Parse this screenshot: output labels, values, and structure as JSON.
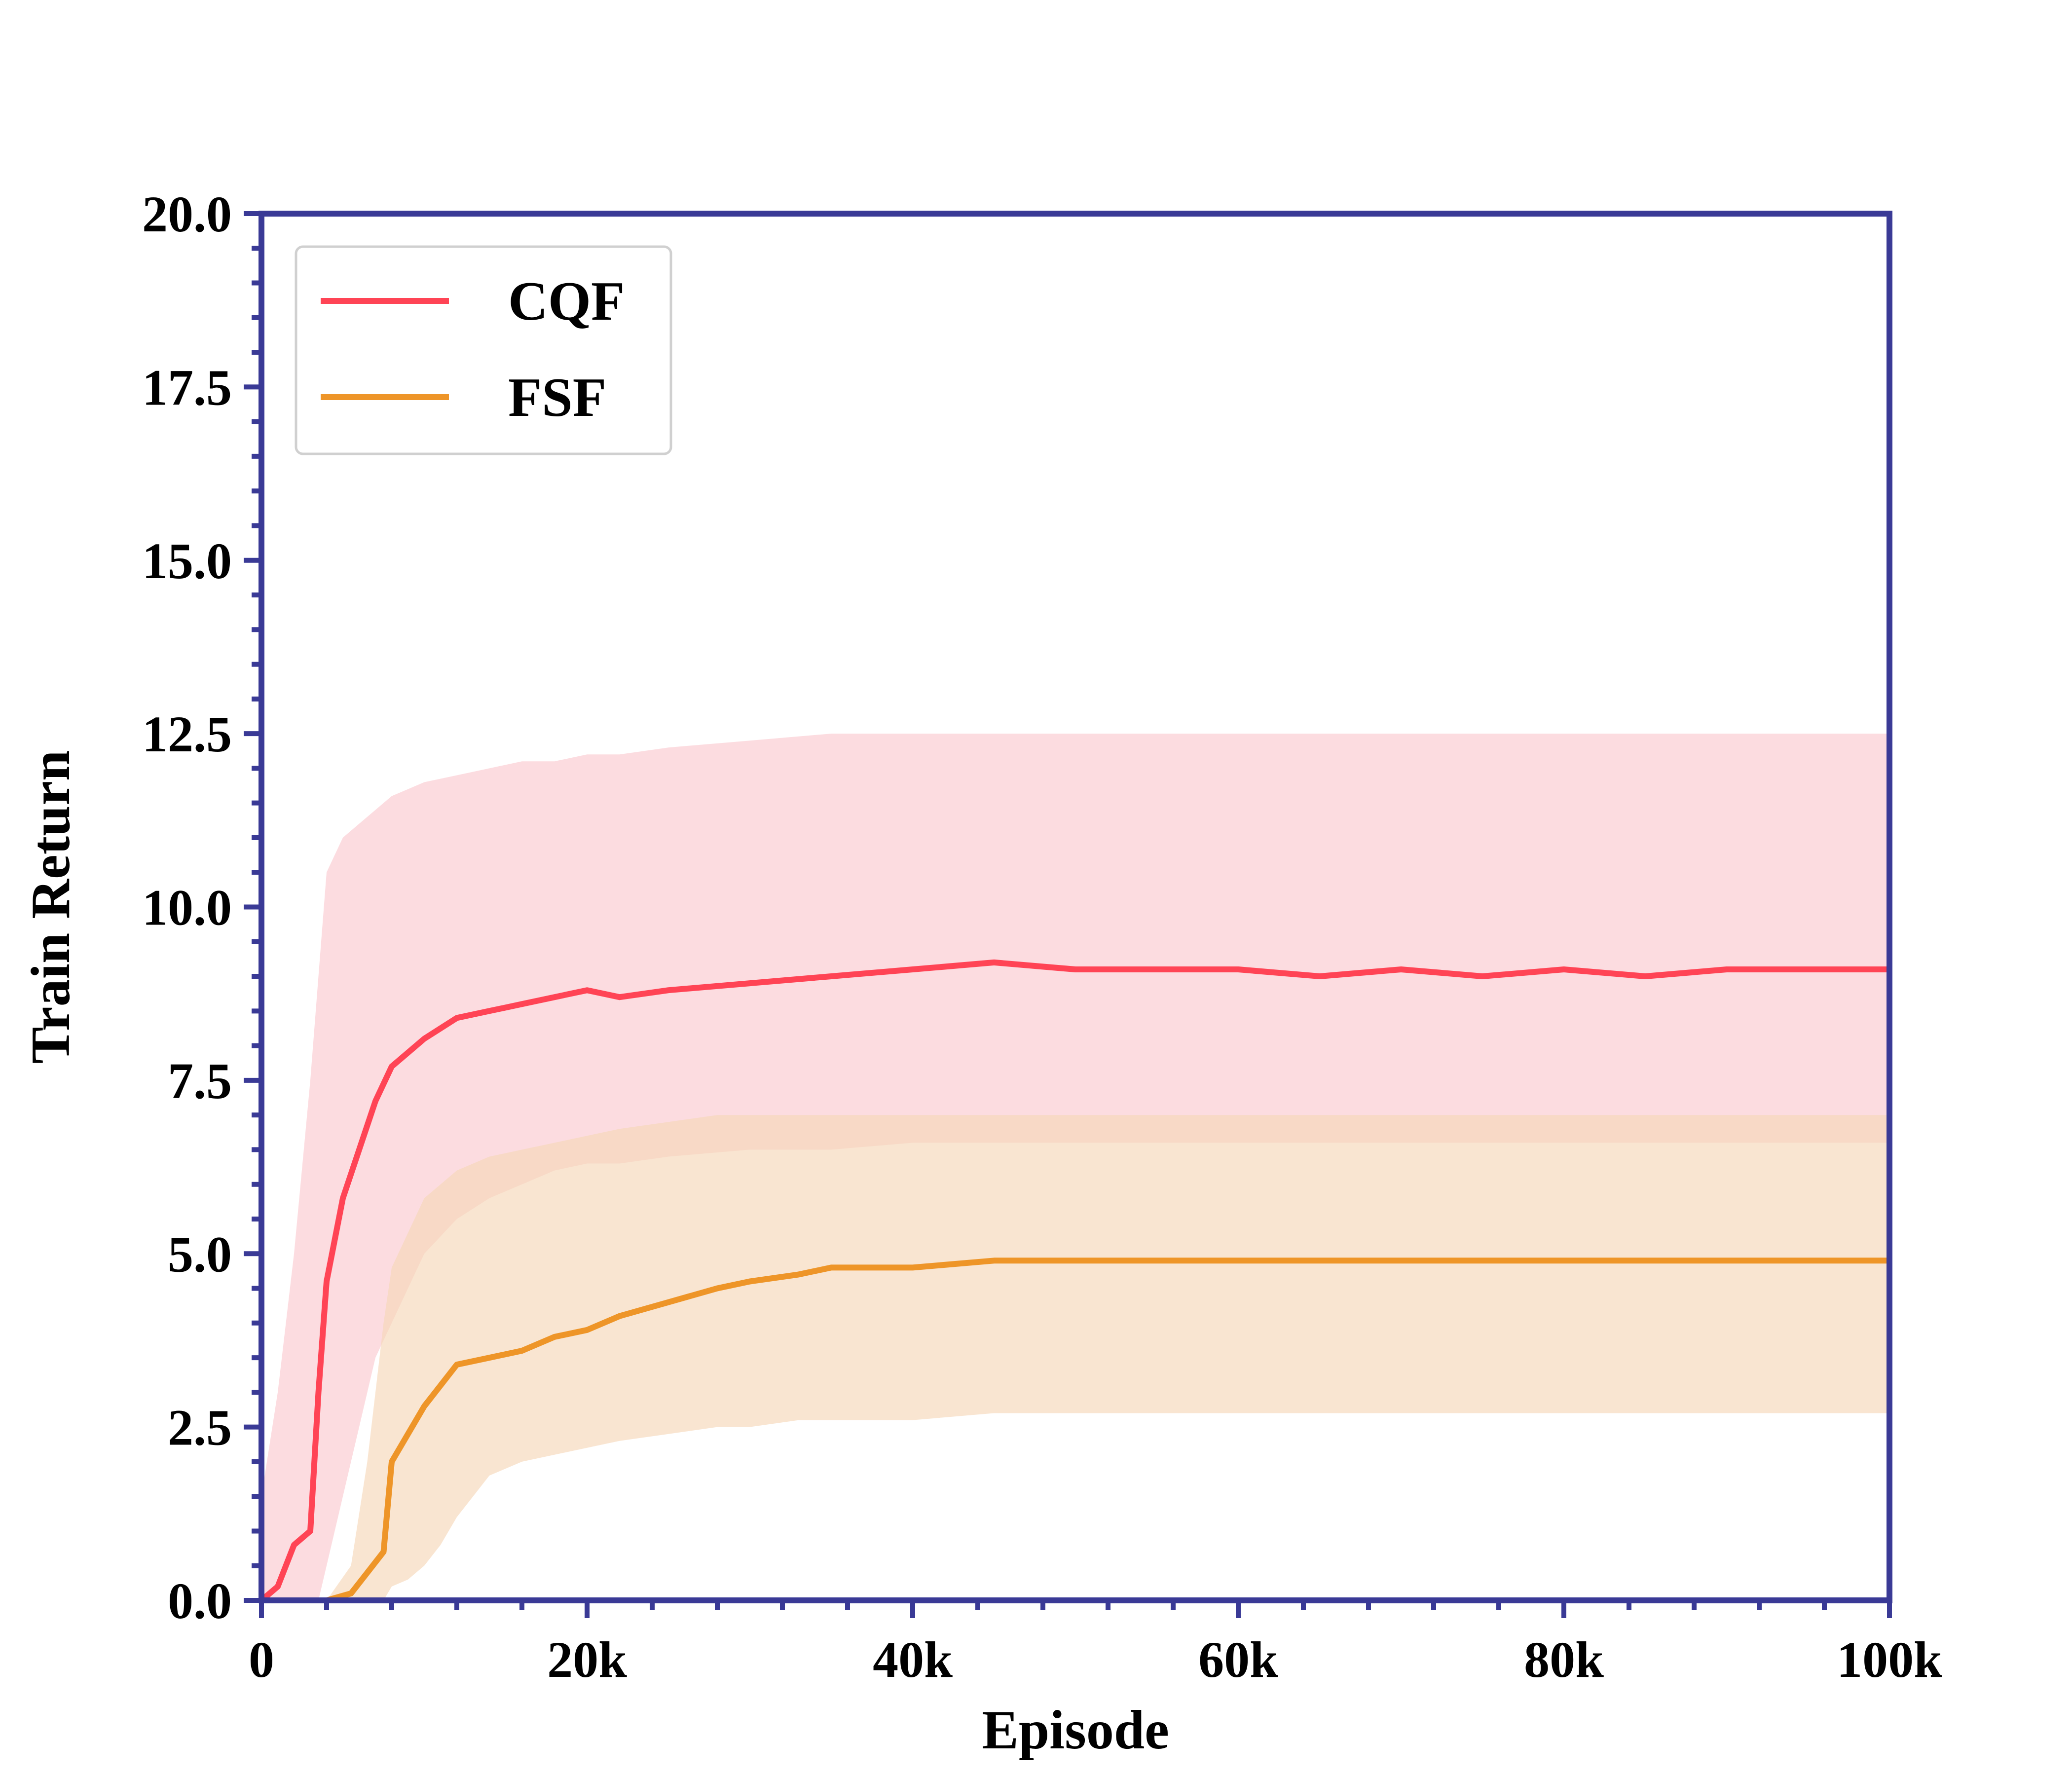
{
  "chart_data": {
    "type": "line",
    "title": "",
    "xlabel": "Episode",
    "ylabel": "Train Return",
    "xlim": [
      0,
      100000
    ],
    "ylim": [
      0,
      20
    ],
    "x_ticks": [
      0,
      20000,
      40000,
      60000,
      80000,
      100000
    ],
    "x_tick_labels": [
      "0",
      "20k",
      "40k",
      "60k",
      "80k",
      "100k"
    ],
    "y_ticks": [
      0,
      2.5,
      5,
      7.5,
      10,
      12.5,
      15,
      17.5,
      20
    ],
    "y_tick_labels": [
      "0.0",
      "2.5",
      "5.0",
      "7.5",
      "10.0",
      "12.5",
      "15.0",
      "17.5",
      "20.0"
    ],
    "grid": false,
    "legend_position": "top-left",
    "axis_color": "#3a3a96",
    "series": [
      {
        "name": "CQF",
        "color": "#ff4455",
        "band_color": "#fbc9d0",
        "x": [
          0,
          1000,
          2000,
          3000,
          3500,
          4000,
          5000,
          6000,
          7000,
          8000,
          9000,
          10000,
          12000,
          14000,
          16000,
          18000,
          20000,
          22000,
          25000,
          30000,
          35000,
          40000,
          45000,
          50000,
          55000,
          60000,
          65000,
          70000,
          75000,
          80000,
          85000,
          90000,
          95000,
          100000
        ],
        "mean": [
          0.0,
          0.2,
          0.8,
          1.0,
          3.0,
          4.6,
          5.8,
          6.5,
          7.2,
          7.7,
          7.9,
          8.1,
          8.4,
          8.5,
          8.6,
          8.7,
          8.8,
          8.7,
          8.8,
          8.9,
          9.0,
          9.1,
          9.2,
          9.1,
          9.1,
          9.1,
          9.0,
          9.1,
          9.0,
          9.1,
          9.0,
          9.1,
          9.1,
          9.1
        ],
        "lower": [
          0.0,
          0.0,
          0.0,
          0.0,
          0.0,
          0.5,
          1.5,
          2.5,
          3.5,
          4.0,
          4.5,
          5.0,
          5.5,
          5.8,
          6.0,
          6.2,
          6.3,
          6.3,
          6.4,
          6.5,
          6.5,
          6.6,
          6.6,
          6.6,
          6.6,
          6.6,
          6.6,
          6.6,
          6.6,
          6.6,
          6.6,
          6.6,
          6.6,
          6.6
        ],
        "upper": [
          1.5,
          3.0,
          5.0,
          7.5,
          9.0,
          10.5,
          11.0,
          11.2,
          11.4,
          11.6,
          11.7,
          11.8,
          11.9,
          12.0,
          12.1,
          12.1,
          12.2,
          12.2,
          12.3,
          12.4,
          12.5,
          12.5,
          12.5,
          12.5,
          12.5,
          12.5,
          12.5,
          12.5,
          12.5,
          12.5,
          12.5,
          12.5,
          12.5,
          12.5
        ]
      },
      {
        "name": "FSF",
        "color": "#ee9528",
        "band_color": "#f6d7b8",
        "x": [
          0,
          2000,
          4000,
          5500,
          6500,
          7500,
          8000,
          9000,
          10000,
          11000,
          12000,
          14000,
          16000,
          18000,
          20000,
          22000,
          25000,
          28000,
          30000,
          33000,
          35000,
          38000,
          40000,
          45000,
          50000,
          55000,
          60000,
          65000,
          70000,
          75000,
          80000,
          85000,
          90000,
          95000,
          100000
        ],
        "mean": [
          0.0,
          0.0,
          0.0,
          0.1,
          0.4,
          0.7,
          2.0,
          2.4,
          2.8,
          3.1,
          3.4,
          3.5,
          3.6,
          3.8,
          3.9,
          4.1,
          4.3,
          4.5,
          4.6,
          4.7,
          4.8,
          4.8,
          4.8,
          4.9,
          4.9,
          4.9,
          4.9,
          4.9,
          4.9,
          4.9,
          4.9,
          4.9,
          4.9,
          4.9,
          4.9
        ],
        "lower": [
          0.0,
          0.0,
          0.0,
          0.0,
          0.0,
          0.0,
          0.2,
          0.3,
          0.5,
          0.8,
          1.2,
          1.8,
          2.0,
          2.1,
          2.2,
          2.3,
          2.4,
          2.5,
          2.5,
          2.6,
          2.6,
          2.6,
          2.6,
          2.7,
          2.7,
          2.7,
          2.7,
          2.7,
          2.7,
          2.7,
          2.7,
          2.7,
          2.7,
          2.7,
          2.7
        ],
        "upper": [
          0.0,
          0.0,
          0.0,
          0.5,
          2.0,
          4.0,
          4.8,
          5.3,
          5.8,
          6.0,
          6.2,
          6.4,
          6.5,
          6.6,
          6.7,
          6.8,
          6.9,
          7.0,
          7.0,
          7.0,
          7.0,
          7.0,
          7.0,
          7.0,
          7.0,
          7.0,
          7.0,
          7.0,
          7.0,
          7.0,
          7.0,
          7.0,
          7.0,
          7.0,
          7.0
        ]
      }
    ]
  }
}
